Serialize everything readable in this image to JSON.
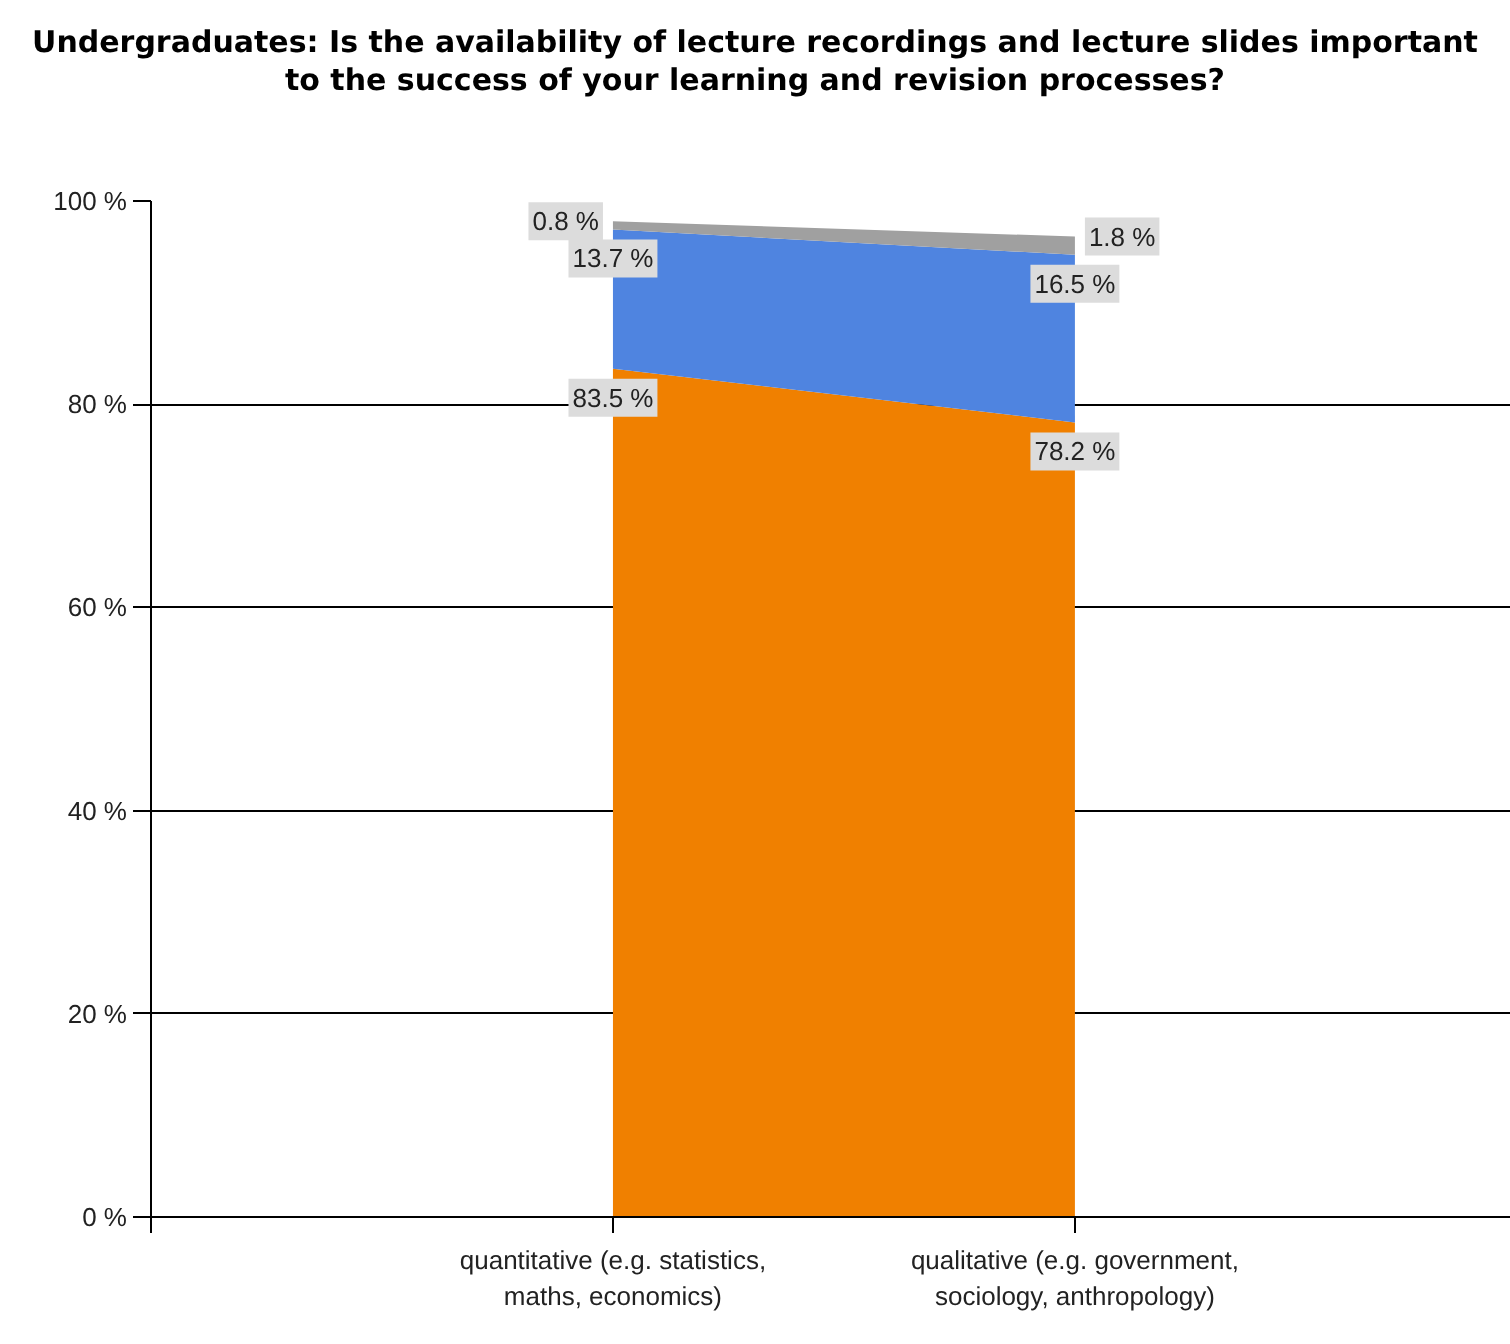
{
  "chart_data": {
    "type": "area",
    "stacked": true,
    "title": "Undergraduates: Is the availability of lecture recordings and lecture slides important to the success of your learning and revision processes?",
    "categories": [
      "quantitative (e.g. statistics, maths, economics)",
      "qualitative (e.g. government, sociology, anthropology)"
    ],
    "series": [
      {
        "color": "#f08000",
        "values": [
          83.5,
          78.2
        ],
        "value_labels": [
          "83.5 %",
          "78.2 %"
        ]
      },
      {
        "color": "#4f84e0",
        "values": [
          13.7,
          16.5
        ],
        "value_labels": [
          "13.7 %",
          "16.5 %"
        ]
      },
      {
        "color": "#a0a0a0",
        "values": [
          0.8,
          1.8
        ],
        "value_labels": [
          "0.8 %",
          "1.8 %"
        ]
      }
    ],
    "ylim": [
      0,
      100
    ],
    "yticks": [
      {
        "value": 0,
        "label": "0 %"
      },
      {
        "value": 20,
        "label": "20 %"
      },
      {
        "value": 40,
        "label": "40 %"
      },
      {
        "value": 60,
        "label": "60 %"
      },
      {
        "value": 80,
        "label": "80 %"
      },
      {
        "value": 100,
        "label": "100 %"
      }
    ],
    "grid": "y"
  }
}
